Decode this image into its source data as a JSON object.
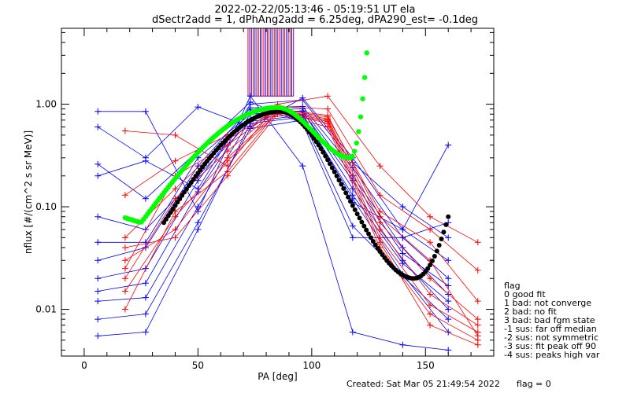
{
  "header": {
    "title_line1": "2022-02-22/05:13:46 - 05:19:51 UT ela",
    "title_line2": "dSectr2add = 1, dPhAng2add = 6.25deg, dPA290_est=  -0.1deg"
  },
  "legend": {
    "title": "flag",
    "items": [
      " 0 good fit",
      " 1 bad: not converge",
      " 2 bad: no fit",
      " 3 bad: bad fgm state",
      "-1 sus: far off median",
      "-2 sus: not symmetric",
      "-3 sus: fit peak off 90",
      "-4 sus: peaks high var"
    ]
  },
  "footer": {
    "created": "Created: Sat Mar 05 21:49:54 2022",
    "flag": "flag = 0"
  },
  "colors": {
    "red": "#ff0000",
    "blue": "#0000ff",
    "green": "#00ff00",
    "black": "#000000",
    "purple": "#8b008b"
  },
  "chart_data": {
    "type": "line",
    "title": "2022-02-22/05:13:46 - 05:19:51 UT ela",
    "subtitle": "dSectr2add = 1, dPhAng2add = 6.25deg, dPA290_est=  -0.1deg",
    "xlabel": "PA [deg]",
    "ylabel": "nflux [#/(cm^2 s sr MeV)]",
    "xlim": [
      -10,
      180
    ],
    "ylim": [
      0.0035,
      5.5
    ],
    "yscale": "log",
    "x_ticks": [
      0,
      50,
      100,
      150
    ],
    "y_ticks": [
      0.01,
      0.1,
      1.0
    ],
    "y_tick_labels": [
      "0.01",
      "0.10",
      "1.00"
    ],
    "grid": false,
    "legend_placement": "right",
    "series": [
      {
        "color": "blue",
        "x": [
          6,
          27,
          50,
          73,
          96,
          118,
          140,
          160
        ],
        "y": [
          0.0055,
          0.006,
          0.06,
          0.65,
          0.75,
          0.11,
          0.06,
          0.4
        ]
      },
      {
        "color": "blue",
        "x": [
          6,
          27,
          50,
          73,
          96,
          118,
          140,
          160
        ],
        "y": [
          0.008,
          0.009,
          0.07,
          0.58,
          0.7,
          0.065,
          0.021,
          0.008
        ]
      },
      {
        "color": "blue",
        "x": [
          6,
          27,
          50,
          73,
          96,
          118,
          140,
          160
        ],
        "y": [
          0.012,
          0.013,
          0.1,
          0.72,
          0.8,
          0.12,
          0.022,
          0.006
        ]
      },
      {
        "color": "blue",
        "x": [
          6,
          27,
          50,
          73,
          96,
          118,
          140,
          160
        ],
        "y": [
          0.015,
          0.018,
          0.14,
          0.8,
          0.86,
          0.15,
          0.03,
          0.01
        ]
      },
      {
        "color": "blue",
        "x": [
          6,
          27,
          50,
          73,
          96,
          118,
          140,
          160
        ],
        "y": [
          0.02,
          0.025,
          0.18,
          0.88,
          0.9,
          0.2,
          0.04,
          0.014
        ]
      },
      {
        "color": "blue",
        "x": [
          6,
          27,
          50,
          73,
          96,
          118,
          140,
          160
        ],
        "y": [
          0.03,
          0.04,
          0.25,
          0.92,
          0.95,
          0.24,
          0.05,
          0.02
        ]
      },
      {
        "color": "blue",
        "x": [
          6,
          27,
          50,
          73,
          96,
          118,
          140,
          160
        ],
        "y": [
          0.045,
          0.045,
          0.3,
          0.8,
          0.85,
          0.18,
          0.035,
          0.017
        ]
      },
      {
        "color": "blue",
        "x": [
          6,
          27,
          50,
          73,
          96,
          118,
          140,
          160
        ],
        "y": [
          0.08,
          0.06,
          0.2,
          0.68,
          0.78,
          0.13,
          0.028,
          0.012
        ]
      },
      {
        "color": "blue",
        "x": [
          6,
          27,
          50,
          73,
          96,
          118,
          140,
          160
        ],
        "y": [
          0.2,
          0.28,
          0.15,
          1.0,
          1.1,
          0.27,
          0.1,
          0.05
        ]
      },
      {
        "color": "blue",
        "x": [
          6,
          27,
          50,
          73,
          96,
          118,
          140,
          160
        ],
        "y": [
          0.6,
          0.3,
          0.94,
          0.6,
          1.15,
          0.3,
          0.06,
          0.03
        ]
      },
      {
        "color": "blue",
        "x": [
          6,
          27,
          50,
          73,
          96,
          118,
          140,
          160
        ],
        "y": [
          0.85,
          0.85,
          0.09,
          1.2,
          0.25,
          0.006,
          0.0045,
          0.004
        ]
      },
      {
        "color": "blue",
        "x": [
          6,
          27,
          50,
          73,
          96,
          118,
          140,
          160
        ],
        "y": [
          0.26,
          0.12,
          0.35,
          1.05,
          0.65,
          0.05,
          0.05,
          0.07
        ]
      },
      {
        "color": "red",
        "x": [
          18,
          40,
          63,
          85,
          107,
          130,
          152,
          173
        ],
        "y": [
          0.55,
          0.5,
          0.25,
          1.0,
          1.2,
          0.25,
          0.08,
          0.045
        ]
      },
      {
        "color": "red",
        "x": [
          18,
          40,
          63,
          85,
          107,
          130,
          152,
          173
        ],
        "y": [
          0.13,
          0.28,
          0.5,
          0.95,
          0.9,
          0.13,
          0.06,
          0.024
        ]
      },
      {
        "color": "red",
        "x": [
          18,
          40,
          63,
          85,
          107,
          130,
          152,
          173
        ],
        "y": [
          0.025,
          0.2,
          0.4,
          0.9,
          0.75,
          0.09,
          0.045,
          0.012
        ]
      },
      {
        "color": "red",
        "x": [
          18,
          40,
          63,
          85,
          107,
          130,
          152,
          173
        ],
        "y": [
          0.02,
          0.12,
          0.35,
          0.88,
          0.72,
          0.07,
          0.02,
          0.008
        ]
      },
      {
        "color": "red",
        "x": [
          18,
          40,
          63,
          85,
          107,
          130,
          152,
          173
        ],
        "y": [
          0.015,
          0.08,
          0.3,
          0.85,
          0.7,
          0.06,
          0.014,
          0.007
        ]
      },
      {
        "color": "red",
        "x": [
          18,
          40,
          63,
          85,
          107,
          130,
          152,
          173
        ],
        "y": [
          0.03,
          0.06,
          0.28,
          0.82,
          0.68,
          0.05,
          0.011,
          0.006
        ]
      },
      {
        "color": "red",
        "x": [
          18,
          40,
          63,
          85,
          107,
          130,
          152,
          173
        ],
        "y": [
          0.04,
          0.05,
          0.2,
          0.8,
          0.6,
          0.04,
          0.009,
          0.005
        ]
      },
      {
        "color": "red",
        "x": [
          18,
          40,
          63,
          85,
          107,
          130,
          152,
          173
        ],
        "y": [
          0.01,
          0.09,
          0.22,
          0.85,
          0.65,
          0.045,
          0.007,
          0.0045
        ]
      },
      {
        "color": "red",
        "x": [
          18,
          40,
          63,
          85,
          107,
          130,
          152,
          173
        ],
        "y": [
          0.05,
          0.15,
          0.45,
          0.9,
          0.78,
          0.08,
          0.03,
          0.0055
        ]
      }
    ],
    "fits": [
      {
        "name": "green fit",
        "color": "green",
        "x_start": 18,
        "x_end": 125,
        "y_start": 0.078,
        "y_min": 0.07,
        "y_peak": 0.93,
        "y_dip": 0.3,
        "y_end": 5.5
      },
      {
        "name": "black fit",
        "color": "black",
        "x_start": 35,
        "x_end": 160,
        "y_start": 0.07,
        "y_peak": 0.85,
        "y_min": 0.02,
        "y_end": 0.08
      }
    ],
    "sector_bars": {
      "x_from": 72,
      "x_to": 92,
      "y_top": 5.5,
      "y_bottom": 1.2,
      "count": 27
    }
  }
}
